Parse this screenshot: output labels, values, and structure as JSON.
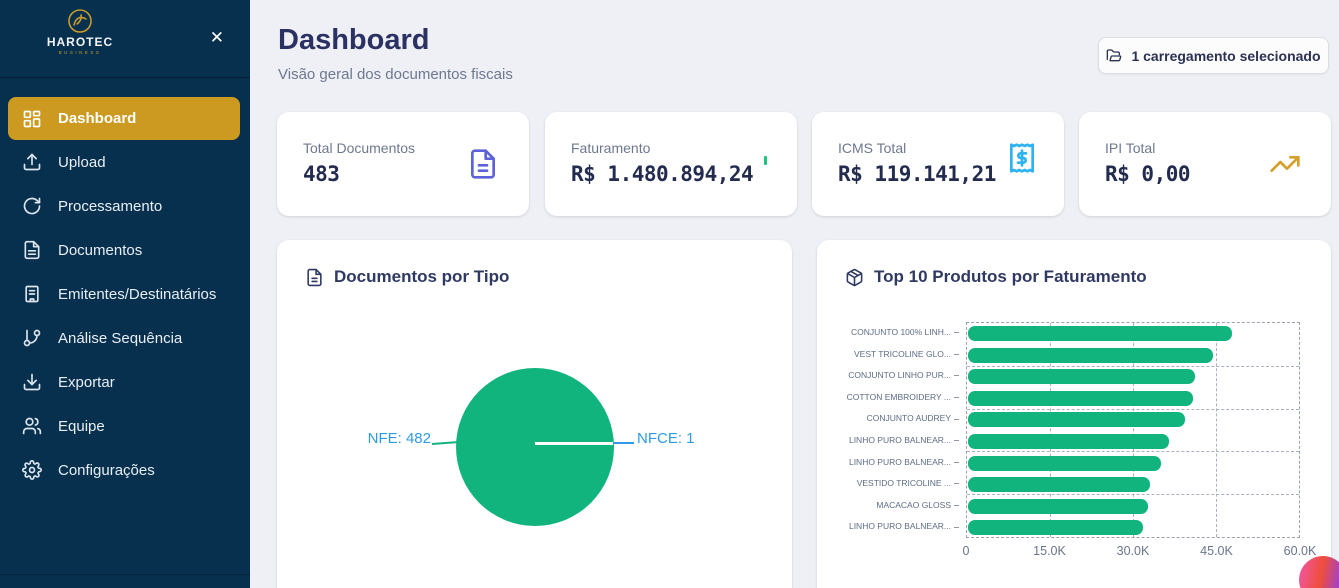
{
  "sidebar": {
    "logo_title": "HAROTEC",
    "logo_subtitle": "BUSINESS",
    "close_icon": "✕",
    "items": [
      {
        "label": "Dashboard",
        "icon": "dashboard-grid-icon",
        "active": true
      },
      {
        "label": "Upload",
        "icon": "upload-icon",
        "active": false
      },
      {
        "label": "Processamento",
        "icon": "refresh-icon",
        "active": false
      },
      {
        "label": "Documentos",
        "icon": "file-text-icon",
        "active": false
      },
      {
        "label": "Emitentes/Destinatários",
        "icon": "building-icon",
        "active": false
      },
      {
        "label": "Análise Sequência",
        "icon": "git-branch-icon",
        "active": false
      },
      {
        "label": "Exportar",
        "icon": "download-icon",
        "active": false
      },
      {
        "label": "Equipe",
        "icon": "users-icon",
        "active": false
      },
      {
        "label": "Configurações",
        "icon": "gear-icon",
        "active": false
      }
    ]
  },
  "header": {
    "title": "Dashboard",
    "subtitle": "Visão geral dos documentos fiscais",
    "selection_button_label": "1 carregamento selecionado"
  },
  "stats": [
    {
      "label": "Total Documentos",
      "value": "483",
      "icon": "file-text-icon",
      "icon_color": "#5c63d8"
    },
    {
      "label": "Faturamento",
      "value": "R$ 1.480.894,24",
      "icon": "dollar-icon",
      "icon_color": "#21c07e"
    },
    {
      "label": "ICMS Total",
      "value": "R$ 119.141,21",
      "icon": "receipt-icon",
      "icon_color": "#2eb2f0"
    },
    {
      "label": "IPI Total",
      "value": "R$ 0,00",
      "icon": "trending-up-icon",
      "icon_color": "#d3a02c"
    }
  ],
  "chart_data": [
    {
      "type": "pie",
      "title": "Documentos por Tipo",
      "slices": [
        {
          "label": "NFE",
          "value": 482
        },
        {
          "label": "NFCE",
          "value": 1
        }
      ],
      "slice_color": "#12b47e",
      "label_color": "#2e9be6",
      "labels_text": {
        "nfe": "NFE: 482",
        "nfce": "NFCE: 1"
      },
      "legend_position": "sides"
    },
    {
      "type": "bar",
      "title": "Top 10 Produtos por Faturamento",
      "orientation": "horizontal",
      "categories": [
        "CONJUNTO 100% LINH...",
        "VEST TRICOLINE GLO...",
        "CONJUNTO LINHO PUR...",
        "COTTON EMBROIDERY ...",
        "CONJUNTO AUDREY",
        "LINHO PURO BALNEAR...",
        "LINHO PURO BALNEAR...",
        "VESTIDO TRICOLINE ...",
        "MACACAO GLOSS",
        "LINHO PURO BALNEAR..."
      ],
      "values": [
        47800,
        44200,
        41000,
        40700,
        39300,
        36300,
        34900,
        32900,
        32500,
        31700
      ],
      "xlim": [
        0,
        60000
      ],
      "xticks": [
        "0",
        "15.0K",
        "30.0K",
        "45.0K",
        "60.0K"
      ],
      "bar_color": "#12b47e",
      "grid": "dashed"
    }
  ],
  "colors": {
    "sidebar_bg": "#07304e",
    "active_item_gold": "#cc9a20",
    "chart_green": "#12b47e",
    "label_blue": "#2e9be6",
    "heading_navy": "#2b3162"
  }
}
